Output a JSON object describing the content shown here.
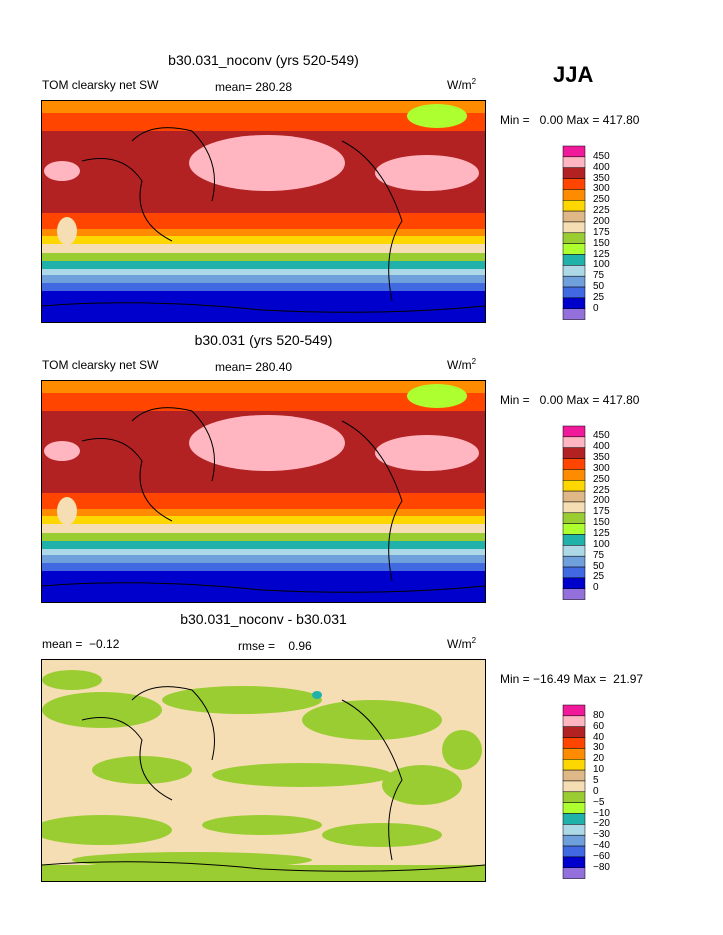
{
  "header": {
    "season": "JJA"
  },
  "colorbar_colors": [
    "#f0199a",
    "#ffb6c1",
    "#b22222",
    "#ff4500",
    "#ff8c00",
    "#ffd700",
    "#deb887",
    "#f5deb3",
    "#9acd32",
    "#adff2f",
    "#20b2aa",
    "#add8e6",
    "#6fa0dc",
    "#4169e1",
    "#0000cd",
    "#9370db"
  ],
  "panels": [
    {
      "title": "b30.031_noconv (yrs 520-549)",
      "left_label": "TOM clearsky net SW",
      "stat_labels": [
        "mean= 280.28"
      ],
      "units": "W/m",
      "units_sup": "2",
      "min_max": "Min =   0.00 Max = 417.80",
      "colorbar_labels": [
        "450",
        "400",
        "350",
        "300",
        "250",
        "225",
        "200",
        "175",
        "150",
        "125",
        "100",
        "75",
        "50",
        "25",
        "0"
      ]
    },
    {
      "title": "b30.031 (yrs 520-549)",
      "left_label": "TOM clearsky net SW",
      "stat_labels": [
        "mean= 280.40"
      ],
      "units": "W/m",
      "units_sup": "2",
      "min_max": "Min =   0.00 Max = 417.80",
      "colorbar_labels": [
        "450",
        "400",
        "350",
        "300",
        "250",
        "225",
        "200",
        "175",
        "150",
        "125",
        "100",
        "75",
        "50",
        "25",
        "0"
      ]
    },
    {
      "title": "b30.031_noconv - b30.031",
      "left_label": "mean =  −0.12",
      "stat_labels": [
        "rmse =    0.96"
      ],
      "units": "W/m",
      "units_sup": "2",
      "min_max": "Min = −16.49 Max =  21.97",
      "colorbar_labels": [
        "80",
        "60",
        "40",
        "30",
        "20",
        "10",
        "5",
        "0",
        "−5",
        "−10",
        "−20",
        "−30",
        "−40",
        "−60",
        "−80"
      ]
    }
  ]
}
